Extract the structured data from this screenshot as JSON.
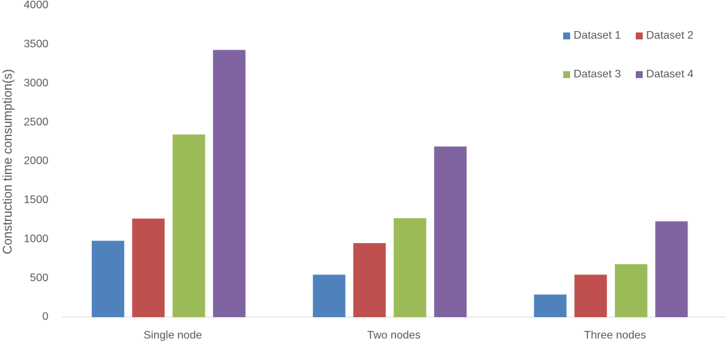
{
  "chart_data": {
    "type": "bar",
    "y_label": "Construction time consumption(s)",
    "categories": [
      "Single node",
      "Two nodes",
      "Three nodes"
    ],
    "series": [
      {
        "name": "Dataset 1",
        "color": "#4f81bd",
        "values": [
          980,
          545,
          290
        ]
      },
      {
        "name": "Dataset 2",
        "color": "#c0504d",
        "values": [
          1265,
          950,
          545
        ]
      },
      {
        "name": "Dataset 3",
        "color": "#9bbb59",
        "values": [
          2345,
          1270,
          680
        ]
      },
      {
        "name": "Dataset 4",
        "color": "#8064a2",
        "values": [
          3430,
          2190,
          1230
        ]
      }
    ],
    "ylim": [
      0,
      4000
    ],
    "yticks": [
      0,
      500,
      1000,
      1500,
      2000,
      2500,
      3000,
      3500,
      4000
    ],
    "grid": false,
    "legend": "upper right"
  }
}
